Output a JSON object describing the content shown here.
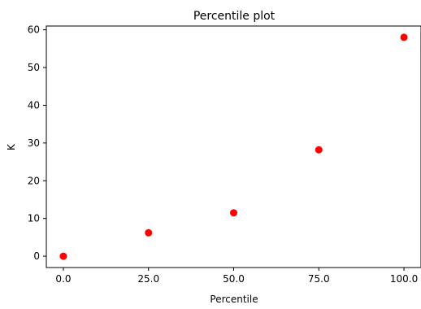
{
  "chart_data": {
    "type": "scatter",
    "title": "Percentile plot",
    "xlabel": "Percentile",
    "ylabel": "K",
    "x": [
      0.0,
      25.0,
      50.0,
      75.0,
      100.0
    ],
    "y": [
      0,
      6.2,
      11.5,
      28.2,
      58.0
    ],
    "xlim": [
      -5,
      105
    ],
    "ylim": [
      -3,
      61
    ],
    "xticks": [
      0,
      25,
      50,
      75,
      100
    ],
    "xtick_labels": [
      "0.0",
      "25.0",
      "50.0",
      "75.0",
      "100.0"
    ],
    "yticks": [
      0,
      10,
      20,
      30,
      40,
      50,
      60
    ],
    "ytick_labels": [
      "0",
      "10",
      "20",
      "30",
      "40",
      "50",
      "60"
    ],
    "grid": false,
    "marker_color": "#ff0000",
    "marker": "circle"
  }
}
